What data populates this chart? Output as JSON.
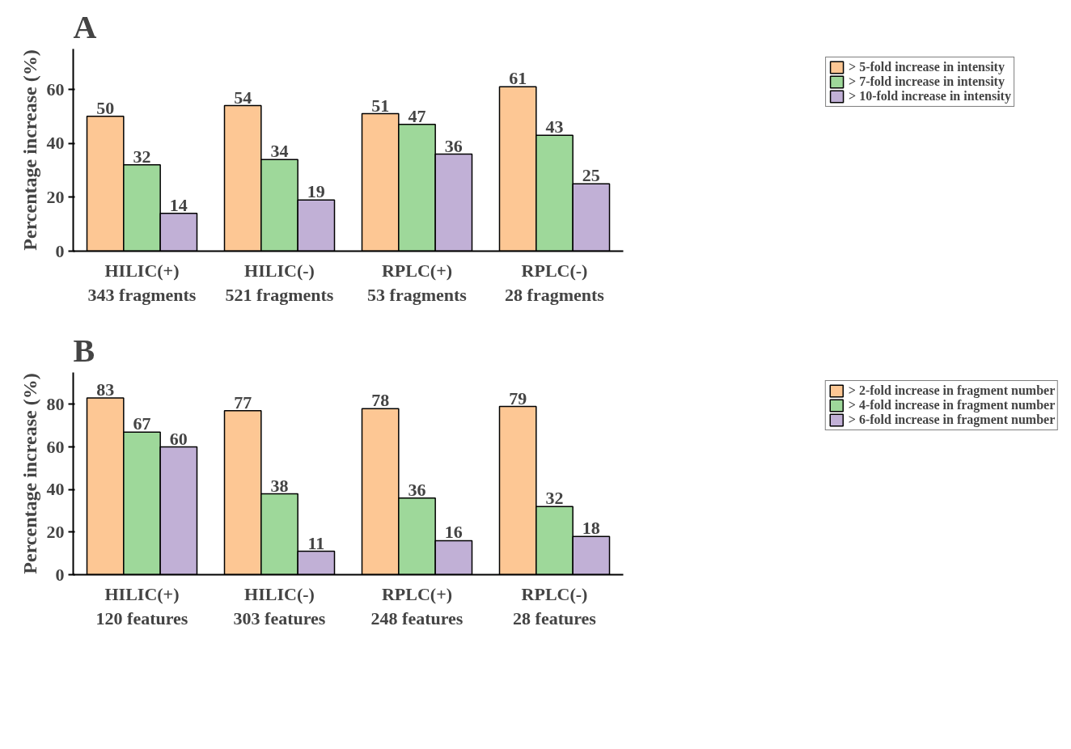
{
  "chart_data": [
    {
      "type": "bar",
      "title": "A",
      "ylabel": "Percentage increase (%)",
      "categories": [
        "HILIC(+)\n343 fragments",
        "HILIC(-)\n521 fragments",
        "RPLC(+)\n53 fragments",
        "RPLC(-)\n28 fragments"
      ],
      "series": [
        {
          "name": "> 5-fold increase in intensity",
          "color": "#fdc794",
          "values": [
            50,
            54,
            51,
            61
          ]
        },
        {
          "name": "> 7-fold increase in intensity",
          "color": "#9ed89a",
          "values": [
            32,
            34,
            47,
            43
          ]
        },
        {
          "name": "> 10-fold increase in intensity",
          "color": "#c1b0d6",
          "values": [
            14,
            19,
            36,
            25
          ]
        }
      ],
      "ylim": [
        0,
        75
      ],
      "yticks": [
        0,
        20,
        40,
        60
      ],
      "data_labels": true,
      "grid": false,
      "legend": "top right"
    },
    {
      "type": "bar",
      "title": "B",
      "ylabel": "Percentage increase (%)",
      "categories": [
        "HILIC(+)\n120 features",
        "HILIC(-)\n303 features",
        "RPLC(+)\n248 features",
        "RPLC(-)\n28 features"
      ],
      "series": [
        {
          "name": "> 2-fold increase in fragment number",
          "color": "#fdc794",
          "values": [
            83,
            77,
            78,
            79
          ]
        },
        {
          "name": "> 4-fold increase in fragment number",
          "color": "#9ed89a",
          "values": [
            67,
            38,
            36,
            32
          ]
        },
        {
          "name": "> 6-fold increase in fragment number",
          "color": "#c1b0d6",
          "values": [
            60,
            11,
            16,
            18
          ]
        }
      ],
      "ylim": [
        0,
        95
      ],
      "yticks": [
        0,
        20,
        40,
        60,
        80
      ],
      "data_labels": true,
      "grid": false,
      "legend": "top right"
    }
  ]
}
